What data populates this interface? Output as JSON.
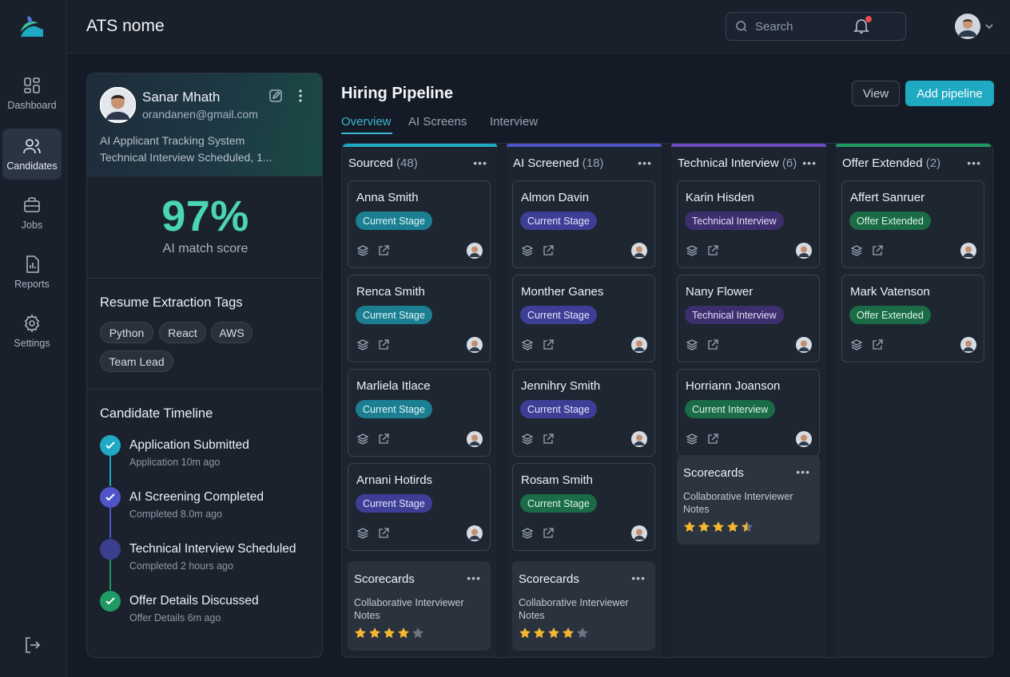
{
  "app": {
    "title": "ATS nome"
  },
  "nav": {
    "items": [
      {
        "label": "Dashboard",
        "icon": "dashboard-icon"
      },
      {
        "label": "Candidates",
        "icon": "users-icon"
      },
      {
        "label": "Jobs",
        "icon": "briefcase-icon"
      },
      {
        "label": "Reports",
        "icon": "reports-icon"
      },
      {
        "label": "Settings",
        "icon": "gear-icon"
      }
    ],
    "active": "Candidates"
  },
  "header": {
    "search_placeholder": "Search"
  },
  "profile": {
    "name": "Sanar Mhath",
    "email": "orandanen@gmail.com",
    "line1": "AI Applicant Tracking System",
    "line2": "Technical Interview Scheduled, 1...",
    "score": "97%",
    "score_label": "AI match score",
    "tags_title": "Resume Extraction Tags",
    "tags": [
      "Python",
      "React",
      "AWS",
      "Team Lead"
    ],
    "timeline_title": "Candidate Timeline",
    "timeline": [
      {
        "title": "Application Submitted",
        "sub": "Application 10m ago"
      },
      {
        "title": "AI Screening Completed",
        "sub": "Completed 8.0m ago"
      },
      {
        "title": "Technical Interview Scheduled",
        "sub": "Completed 2 hours ago"
      },
      {
        "title": "Offer Details Discussed",
        "sub": "Offer Details 6m ago"
      }
    ]
  },
  "pipeline": {
    "title": "Hiring Pipeline",
    "tabs": [
      "Overview",
      "AI Screens",
      "Interview"
    ],
    "view_label": "View",
    "add_label": "Add pipeline",
    "columns": [
      {
        "title": "Sourced",
        "count": "(48)",
        "accent": "#1fa9c2",
        "cards": [
          {
            "name": "Anna Smith",
            "stage": "Current Stage"
          },
          {
            "name": "Renca Smith",
            "stage": "Current Stage"
          },
          {
            "name": "Marliela Itlace",
            "stage": "Current Stage"
          },
          {
            "name": "Arnani Hotirds",
            "stage": "Current Stage"
          }
        ],
        "scorecard": {
          "title": "Scorecards",
          "notes": "Collaborative Interviewer Notes",
          "rating": 4
        }
      },
      {
        "title": "AI Screened",
        "count": "(18)",
        "accent": "#4f55c9",
        "cards": [
          {
            "name": "Almon Davin",
            "stage": "Current Stage"
          },
          {
            "name": "Monther Ganes",
            "stage": "Current Stage"
          },
          {
            "name": "Jennihry Smith",
            "stage": "Current Stage"
          },
          {
            "name": "Rosam Smith",
            "stage": "Current Stage"
          }
        ],
        "scorecard": {
          "title": "Scorecards",
          "notes": "Collaborative Interviewer Notes",
          "rating": 4
        }
      },
      {
        "title": "Technical Interview",
        "count": "(6)",
        "accent": "#6a4bc0",
        "cards": [
          {
            "name": "Karin Hisden",
            "stage": "Technical Interview"
          },
          {
            "name": "Nany Flower",
            "stage": "Technical Interview"
          },
          {
            "name": "Horriann Joanson",
            "stage": "Current Interview"
          }
        ],
        "scorecard": {
          "title": "Scorecards",
          "notes": "Collaborative Interviewer Notes",
          "rating": 4.5
        }
      },
      {
        "title": "Offer Extended",
        "count": "(2)",
        "accent": "#1f9a63",
        "cards": [
          {
            "name": "Affert Sanruer",
            "stage": "Offer Extended"
          },
          {
            "name": "Mark Vatenson",
            "stage": "Offer Extended"
          }
        ]
      }
    ]
  },
  "colors": {
    "teal": "#1fa9c2",
    "indigo": "#4f55c9",
    "purple": "#6a4bc0",
    "green": "#1f9a63",
    "score": "#4ad6b0",
    "star": "#f5b731"
  }
}
